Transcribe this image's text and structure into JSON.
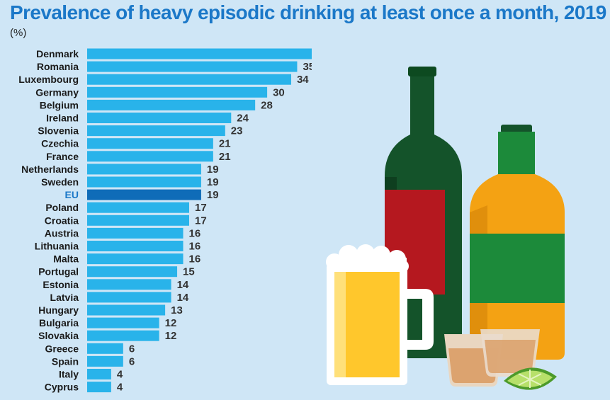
{
  "header": {
    "title": "Prevalence of heavy episodic drinking at least once a month, 2019",
    "unit": "(%)"
  },
  "colors": {
    "bar": "#29b3ea",
    "highlight_bar": "#0f6cb8",
    "highlight_label": "#1b78c8",
    "label": "#1a1a1a",
    "background": "#cfe6f6"
  },
  "chart_data": {
    "type": "bar",
    "orientation": "horizontal",
    "title": "Prevalence of heavy episodic drinking at least once a month, 2019",
    "unit": "(%)",
    "highlight": "EU",
    "categories": [
      "Denmark",
      "Romania",
      "Luxembourg",
      "Germany",
      "Belgium",
      "Ireland",
      "Slovenia",
      "Czechia",
      "France",
      "Netherlands",
      "Sweden",
      "EU",
      "Poland",
      "Croatia",
      "Austria",
      "Lithuania",
      "Malta",
      "Portugal",
      "Estonia",
      "Latvia",
      "Hungary",
      "Bulgaria",
      "Slovakia",
      "Greece",
      "Spain",
      "Italy",
      "Cyprus"
    ],
    "values": [
      38,
      35,
      34,
      30,
      28,
      24,
      23,
      21,
      21,
      19,
      19,
      19,
      17,
      17,
      16,
      16,
      16,
      15,
      14,
      14,
      13,
      12,
      12,
      6,
      6,
      4,
      4
    ],
    "grid": false
  },
  "illustration": {
    "icons": [
      "wine-bottle-icon",
      "whisky-bottle-icon",
      "beer-mug-icon",
      "shot-glass-icon",
      "lime-icon"
    ]
  }
}
